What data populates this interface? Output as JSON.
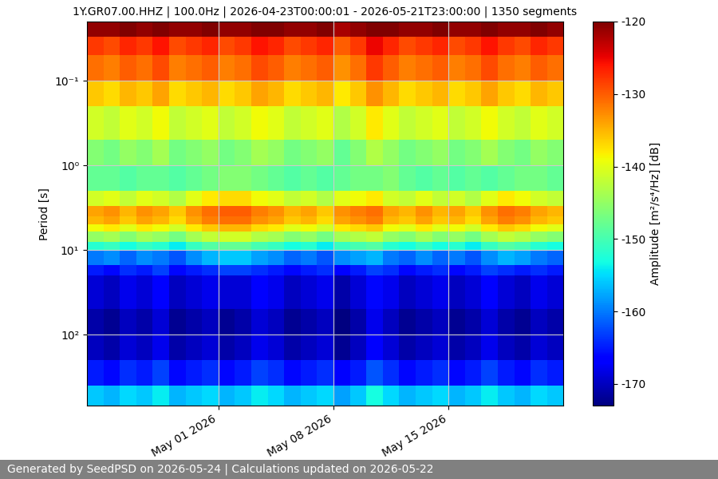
{
  "chart_data": {
    "type": "heatmap",
    "title": "1Y.GR07.00.HHZ | 100.0Hz | 2026-04-23T00:00:01 - 2026-05-21T23:00:00 | 1350 segments",
    "y_label": "Period [s]",
    "footer": "Generated by SeedPSD on 2026-05-24 | Calculations updated on 2026-05-22",
    "colorbar_label": "Amplitude [m²/s⁴/Hz] [dB]",
    "log": "y",
    "grid": true,
    "x_edges": [
      "2026-04-23T00:00:01",
      "2026-04-24T00:00:00",
      "2026-04-25T00:00:00",
      "2026-04-26T00:00:00",
      "2026-04-27T00:00:00",
      "2026-04-28T00:00:00",
      "2026-04-29T00:00:00",
      "2026-04-30T00:00:00",
      "2026-05-01T00:00:00",
      "2026-05-02T00:00:00",
      "2026-05-03T00:00:00",
      "2026-05-04T00:00:00",
      "2026-05-05T00:00:00",
      "2026-05-06T00:00:00",
      "2026-05-07T00:00:00",
      "2026-05-08T00:00:00",
      "2026-05-09T00:00:00",
      "2026-05-10T00:00:00",
      "2026-05-11T00:00:00",
      "2026-05-12T00:00:00",
      "2026-05-13T00:00:00",
      "2026-05-14T00:00:00",
      "2026-05-15T00:00:00",
      "2026-05-16T00:00:00",
      "2026-05-17T00:00:00",
      "2026-05-18T00:00:00",
      "2026-05-19T00:00:00",
      "2026-05-20T00:00:00",
      "2026-05-21T00:00:00",
      "2026-05-21T23:00:00"
    ],
    "period_edges": [
      0.02,
      0.03,
      0.05,
      0.1,
      0.2,
      0.5,
      1,
      2,
      3,
      4,
      5,
      6,
      8,
      10,
      15,
      20,
      50,
      100,
      200,
      400,
      690
    ],
    "cells": [
      [
        -121,
        -121,
        -120,
        -121,
        -120,
        -121,
        -121,
        -120,
        -121,
        -121,
        -120,
        -120,
        -121,
        -121,
        -120,
        -122,
        -121,
        -120,
        -120,
        -121,
        -121,
        -120,
        -121,
        -121,
        -120,
        -121,
        -121,
        -120,
        -121
      ],
      [
        -128,
        -129,
        -127,
        -128,
        -126,
        -129,
        -128,
        -127,
        -129,
        -128,
        -126,
        -127,
        -129,
        -128,
        -127,
        -130,
        -128,
        -125,
        -127,
        -129,
        -128,
        -127,
        -129,
        -128,
        -126,
        -128,
        -129,
        -127,
        -128
      ],
      [
        -131,
        -132,
        -130,
        -131,
        -129,
        -132,
        -131,
        -130,
        -132,
        -131,
        -129,
        -130,
        -132,
        -131,
        -130,
        -133,
        -131,
        -128,
        -130,
        -132,
        -131,
        -130,
        -132,
        -131,
        -129,
        -131,
        -132,
        -130,
        -131
      ],
      [
        -136,
        -137,
        -135,
        -136,
        -134,
        -137,
        -136,
        -135,
        -137,
        -136,
        -134,
        -135,
        -137,
        -136,
        -135,
        -138,
        -136,
        -133,
        -135,
        -137,
        -136,
        -135,
        -137,
        -136,
        -134,
        -136,
        -137,
        -135,
        -136
      ],
      [
        -141,
        -142,
        -140,
        -141,
        -139,
        -142,
        -141,
        -140,
        -142,
        -141,
        -139,
        -140,
        -142,
        -141,
        -140,
        -143,
        -141,
        -138,
        -140,
        -142,
        -141,
        -140,
        -142,
        -141,
        -139,
        -141,
        -142,
        -140,
        -141
      ],
      [
        -146,
        -147,
        -145,
        -146,
        -144,
        -147,
        -146,
        -145,
        -147,
        -146,
        -144,
        -145,
        -147,
        -146,
        -145,
        -148,
        -146,
        -143,
        -145,
        -147,
        -146,
        -145,
        -147,
        -146,
        -144,
        -146,
        -147,
        -145,
        -146
      ],
      [
        -148,
        -148,
        -149,
        -148,
        -148,
        -149,
        -148,
        -147,
        -146,
        -146,
        -147,
        -148,
        -149,
        -148,
        -149,
        -148,
        -147,
        -147,
        -146,
        -148,
        -149,
        -148,
        -149,
        -148,
        -149,
        -148,
        -147,
        -147,
        -148
      ],
      [
        -141,
        -140,
        -142,
        -140,
        -141,
        -143,
        -140,
        -138,
        -137,
        -137,
        -139,
        -140,
        -142,
        -141,
        -143,
        -140,
        -139,
        -138,
        -141,
        -142,
        -140,
        -142,
        -141,
        -143,
        -140,
        -138,
        -139,
        -141,
        -142
      ],
      [
        -134,
        -133,
        -135,
        -133,
        -134,
        -136,
        -133,
        -131,
        -130,
        -130,
        -132,
        -133,
        -135,
        -134,
        -136,
        -133,
        -132,
        -131,
        -134,
        -135,
        -133,
        -135,
        -134,
        -136,
        -133,
        -131,
        -132,
        -134,
        -135
      ],
      [
        -135,
        -134,
        -136,
        -134,
        -135,
        -137,
        -134,
        -132,
        -131,
        -131,
        -133,
        -134,
        -136,
        -135,
        -137,
        -134,
        -133,
        -132,
        -135,
        -136,
        -134,
        -136,
        -135,
        -137,
        -134,
        -132,
        -133,
        -135,
        -136
      ],
      [
        -139,
        -138,
        -140,
        -138,
        -139,
        -141,
        -138,
        -136,
        -135,
        -135,
        -137,
        -138,
        -140,
        -139,
        -141,
        -138,
        -137,
        -136,
        -139,
        -140,
        -138,
        -140,
        -139,
        -141,
        -138,
        -136,
        -137,
        -139,
        -140
      ],
      [
        -145,
        -144,
        -146,
        -144,
        -145,
        -147,
        -144,
        -142,
        -141,
        -141,
        -143,
        -144,
        -146,
        -145,
        -147,
        -144,
        -143,
        -142,
        -145,
        -146,
        -144,
        -146,
        -145,
        -147,
        -144,
        -142,
        -143,
        -145,
        -146
      ],
      [
        -152,
        -151,
        -153,
        -151,
        -152,
        -154,
        -151,
        -149,
        -148,
        -148,
        -150,
        -151,
        -153,
        -152,
        -154,
        -151,
        -150,
        -149,
        -152,
        -153,
        -151,
        -153,
        -152,
        -154,
        -151,
        -149,
        -150,
        -152,
        -153
      ],
      [
        -160,
        -159,
        -161,
        -159,
        -160,
        -162,
        -159,
        -157,
        -156,
        -156,
        -158,
        -159,
        -161,
        -160,
        -162,
        -159,
        -158,
        -157,
        -160,
        -161,
        -159,
        -161,
        -160,
        -162,
        -159,
        -157,
        -158,
        -160,
        -161
      ],
      [
        -165,
        -166,
        -164,
        -165,
        -163,
        -166,
        -165,
        -164,
        -163,
        -163,
        -164,
        -165,
        -166,
        -165,
        -164,
        -167,
        -165,
        -163,
        -164,
        -166,
        -165,
        -164,
        -166,
        -165,
        -163,
        -164,
        -165,
        -164,
        -165
      ],
      [
        -169,
        -170,
        -168,
        -169,
        -167,
        -170,
        -169,
        -168,
        -169,
        -169,
        -167,
        -168,
        -170,
        -169,
        -168,
        -171,
        -169,
        -166,
        -168,
        -170,
        -169,
        -168,
        -170,
        -169,
        -167,
        -169,
        -170,
        -168,
        -169
      ],
      [
        -171,
        -172,
        -170,
        -171,
        -169,
        -172,
        -171,
        -170,
        -172,
        -171,
        -169,
        -170,
        -172,
        -171,
        -170,
        -173,
        -171,
        -168,
        -170,
        -172,
        -171,
        -170,
        -172,
        -171,
        -169,
        -171,
        -172,
        -170,
        -171
      ],
      [
        -170,
        -171,
        -169,
        -170,
        -168,
        -171,
        -170,
        -169,
        -171,
        -170,
        -168,
        -169,
        -171,
        -170,
        -169,
        -172,
        -170,
        -167,
        -169,
        -171,
        -170,
        -169,
        -171,
        -170,
        -168,
        -170,
        -171,
        -169,
        -170
      ],
      [
        -165,
        -166,
        -164,
        -165,
        -163,
        -166,
        -165,
        -164,
        -166,
        -165,
        -163,
        -164,
        -166,
        -165,
        -164,
        -167,
        -165,
        -162,
        -164,
        -166,
        -165,
        -164,
        -166,
        -165,
        -163,
        -165,
        -166,
        -164,
        -165
      ],
      [
        -156,
        -157,
        -155,
        -156,
        -154,
        -157,
        -156,
        -155,
        -157,
        -156,
        -154,
        -155,
        -157,
        -156,
        -155,
        -158,
        -156,
        -153,
        -155,
        -157,
        -156,
        -155,
        -157,
        -156,
        -154,
        -156,
        -157,
        -155,
        -156
      ]
    ],
    "xlim": [
      "2026-04-23T00:00:01",
      "2026-05-21T23:00:00"
    ],
    "xticks": [
      {
        "value": "2026-05-01",
        "label": "May 01 2026"
      },
      {
        "value": "2026-05-08",
        "label": "May 08 2026"
      },
      {
        "value": "2026-05-15",
        "label": "May 15 2026"
      }
    ],
    "ylim": [
      690,
      0.02
    ],
    "yticks": [
      {
        "value": 0.1,
        "label": "10⁻¹"
      },
      {
        "value": 1,
        "label": "10⁰"
      },
      {
        "value": 10,
        "label": "10¹"
      },
      {
        "value": 100,
        "label": "10²"
      }
    ],
    "clim": [
      -173,
      -120
    ],
    "cticks": [
      -170,
      -160,
      -150,
      -140,
      -130,
      -120
    ]
  }
}
